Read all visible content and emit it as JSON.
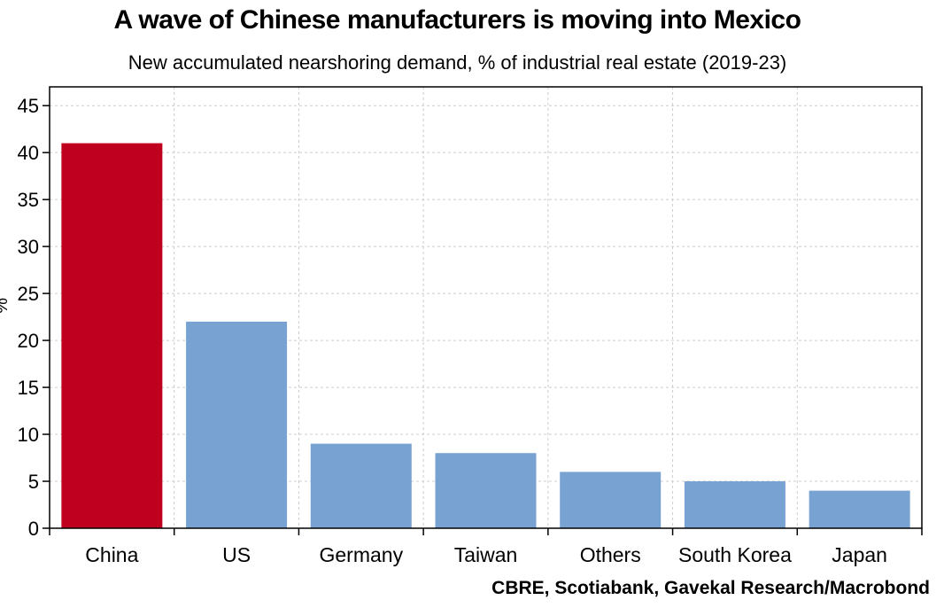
{
  "header": {
    "title": "A wave of Chinese manufacturers is moving into Mexico",
    "subtitle": "New accumulated nearshoring demand, % of industrial real estate (2019-23)"
  },
  "footer": {
    "source": "CBRE, Scotiabank, Gavekal Research/Macrobond"
  },
  "colors": {
    "highlight": "#c0001f",
    "bar": "#77a2d2",
    "grid": "#cccccc"
  },
  "chart_data": {
    "type": "bar",
    "title": "A wave of Chinese manufacturers is moving into Mexico",
    "subtitle": "New accumulated nearshoring demand, % of industrial real estate (2019-23)",
    "xlabel": "",
    "ylabel": "%",
    "categories": [
      "China",
      "US",
      "Germany",
      "Taiwan",
      "Others",
      "South Korea",
      "Japan"
    ],
    "values": [
      41,
      22,
      9,
      8,
      6,
      5,
      4
    ],
    "highlighted": [
      "China"
    ],
    "ylim": [
      0,
      47
    ],
    "yticks": [
      0,
      5,
      10,
      15,
      20,
      25,
      30,
      35,
      40,
      45
    ],
    "grid": true,
    "legend": "none"
  }
}
